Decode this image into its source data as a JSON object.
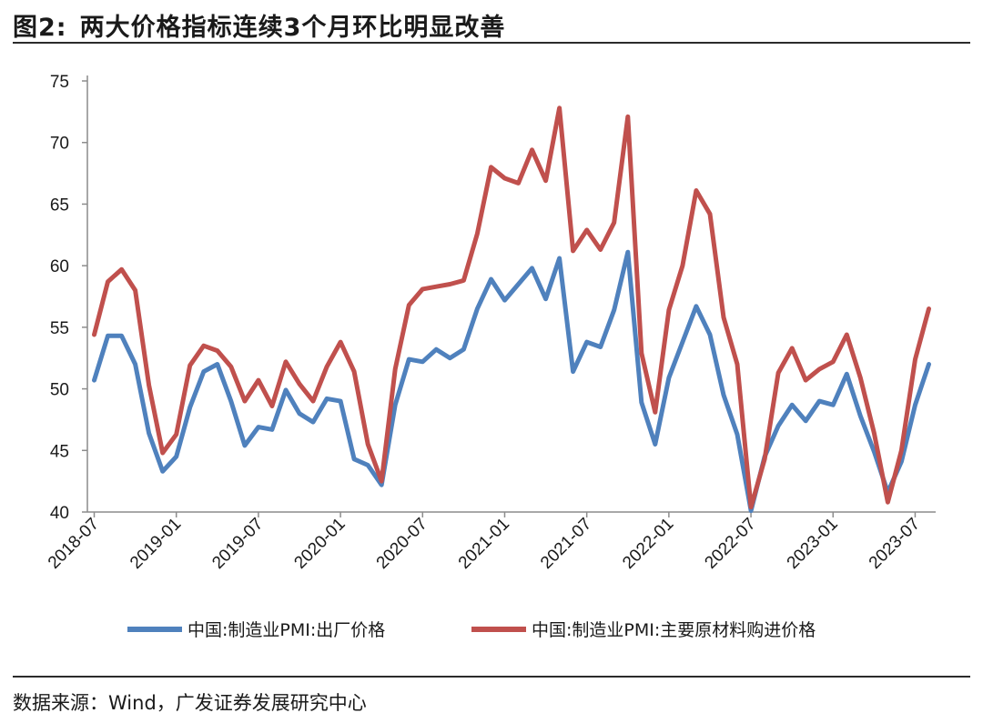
{
  "header": {
    "figure_number": "图2:",
    "title": "两大价格指标连续3个月环比明显改善"
  },
  "footer": {
    "source": "数据来源：Wind，广发证券发展研究中心"
  },
  "chart_data": {
    "type": "line",
    "title": "两大价格指标连续3个月环比明显改善",
    "xlabel": "",
    "ylabel": "",
    "ylim": [
      40,
      75
    ],
    "yticks": [
      40,
      45,
      50,
      55,
      60,
      65,
      70,
      75
    ],
    "grid": false,
    "legend_position": "bottom",
    "x": [
      "2018-07",
      "2018-08",
      "2018-09",
      "2018-10",
      "2018-11",
      "2018-12",
      "2019-01",
      "2019-02",
      "2019-03",
      "2019-04",
      "2019-05",
      "2019-06",
      "2019-07",
      "2019-08",
      "2019-09",
      "2019-10",
      "2019-11",
      "2019-12",
      "2020-01",
      "2020-02",
      "2020-03",
      "2020-04",
      "2020-05",
      "2020-06",
      "2020-07",
      "2020-08",
      "2020-09",
      "2020-10",
      "2020-11",
      "2020-12",
      "2021-01",
      "2021-02",
      "2021-03",
      "2021-04",
      "2021-05",
      "2021-06",
      "2021-07",
      "2021-08",
      "2021-09",
      "2021-10",
      "2021-11",
      "2021-12",
      "2022-01",
      "2022-02",
      "2022-03",
      "2022-04",
      "2022-05",
      "2022-06",
      "2022-07",
      "2022-08",
      "2022-09",
      "2022-10",
      "2022-11",
      "2022-12",
      "2023-01",
      "2023-02",
      "2023-03",
      "2023-04",
      "2023-05",
      "2023-06",
      "2023-07",
      "2023-08"
    ],
    "xticklabels": [
      "2018-07",
      "2019-01",
      "2019-07",
      "2020-01",
      "2020-07",
      "2021-01",
      "2021-07",
      "2022-01",
      "2022-07",
      "2023-01",
      "2023-07"
    ],
    "series": [
      {
        "name": "中国:制造业PMI:出厂价格",
        "color": "#4f81bd",
        "values": [
          50.7,
          54.3,
          54.3,
          52.0,
          46.4,
          43.3,
          44.5,
          48.5,
          51.4,
          52.0,
          49.0,
          45.4,
          46.9,
          46.7,
          49.9,
          48.0,
          47.3,
          49.2,
          49.0,
          44.3,
          43.8,
          42.2,
          48.7,
          52.4,
          52.2,
          53.2,
          52.5,
          53.2,
          56.5,
          58.9,
          57.2,
          58.5,
          59.8,
          57.3,
          60.6,
          51.4,
          53.8,
          53.4,
          56.4,
          61.1,
          48.9,
          45.5,
          50.9,
          53.8,
          56.7,
          54.4,
          49.5,
          46.3,
          40.1,
          44.5,
          47.0,
          48.7,
          47.4,
          49.0,
          48.7,
          51.2,
          47.8,
          44.9,
          41.6,
          44.1,
          48.7,
          52.0
        ]
      },
      {
        "name": "中国:制造业PMI:主要原材料购进价格",
        "color": "#c0504d",
        "values": [
          54.4,
          58.7,
          59.7,
          58.0,
          50.3,
          44.8,
          46.3,
          51.9,
          53.5,
          53.1,
          51.8,
          49.0,
          50.7,
          48.6,
          52.2,
          50.4,
          49.0,
          51.8,
          53.8,
          51.4,
          45.5,
          42.5,
          51.6,
          56.8,
          58.1,
          58.3,
          58.5,
          58.8,
          62.6,
          68.0,
          67.1,
          66.7,
          69.4,
          66.9,
          72.8,
          61.2,
          62.9,
          61.3,
          63.5,
          72.1,
          52.9,
          48.1,
          56.4,
          60.0,
          66.1,
          64.2,
          55.8,
          52.0,
          40.4,
          44.3,
          51.3,
          53.3,
          50.7,
          51.6,
          52.2,
          54.4,
          50.9,
          46.4,
          40.8,
          45.0,
          52.4,
          56.5
        ]
      }
    ]
  }
}
